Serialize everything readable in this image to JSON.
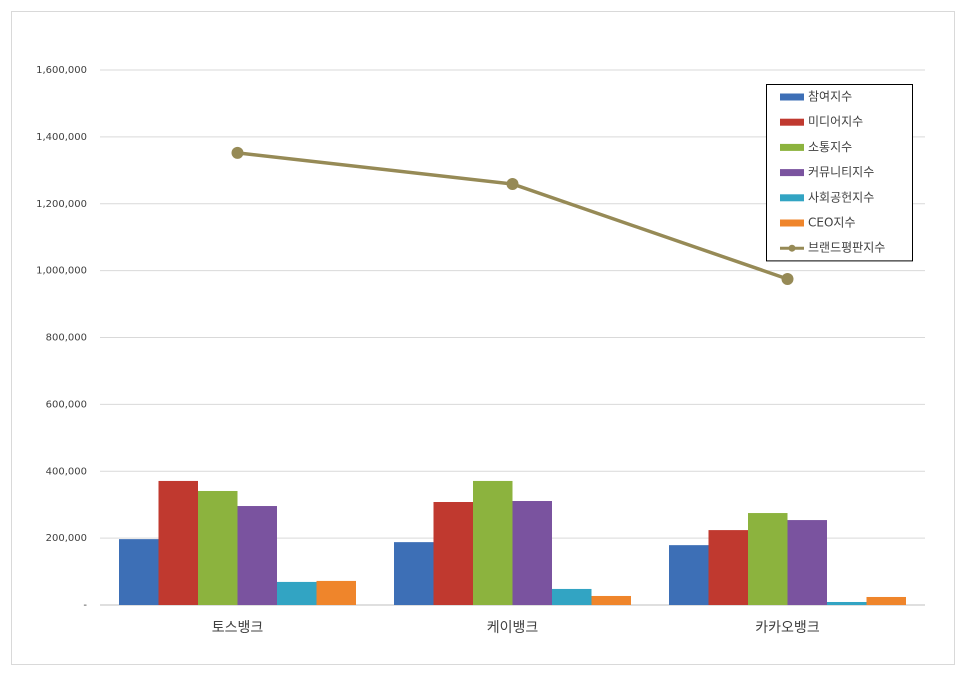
{
  "chart_data": {
    "type": "bar",
    "categories": [
      "토스뱅크",
      "케이뱅크",
      "카카오뱅크"
    ],
    "series": [
      {
        "name": "참여지수",
        "color": "#3d6fb6",
        "values": [
          197000,
          188000,
          179000
        ]
      },
      {
        "name": "미디어지수",
        "color": "#c0392f",
        "values": [
          371000,
          308000,
          224000
        ]
      },
      {
        "name": "소통지수",
        "color": "#8cb33e",
        "values": [
          341000,
          371000,
          275000
        ]
      },
      {
        "name": "커뮤니티지수",
        "color": "#7a539f",
        "values": [
          296000,
          311000,
          254000
        ]
      },
      {
        "name": "사회공헌지수",
        "color": "#32a4c3",
        "values": [
          69000,
          48000,
          9000
        ]
      },
      {
        "name": "CEO지수",
        "color": "#ef852b",
        "values": [
          72000,
          27000,
          24000
        ]
      },
      {
        "name": "브랜드평판지수",
        "color": "#968a56",
        "type": "line",
        "values": [
          1352000,
          1259000,
          975000
        ]
      }
    ],
    "ylim": [
      0,
      1600000
    ],
    "yticks": [
      {
        "value": 0,
        "label": "-"
      },
      {
        "value": 200000,
        "label": "200,000"
      },
      {
        "value": 400000,
        "label": "400,000"
      },
      {
        "value": 600000,
        "label": "600,000"
      },
      {
        "value": 800000,
        "label": "800,000"
      },
      {
        "value": 1000000,
        "label": "1,000,000"
      },
      {
        "value": 1200000,
        "label": "1,200,000"
      },
      {
        "value": 1400000,
        "label": "1,400,000"
      },
      {
        "value": 1600000,
        "label": "1,600,000"
      }
    ],
    "grid": true,
    "legend": "upper right"
  }
}
